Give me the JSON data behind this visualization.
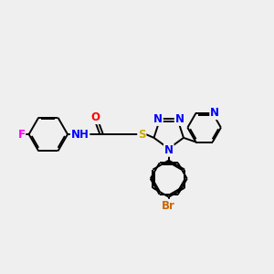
{
  "bg_color": "#efefef",
  "bond_color": "#000000",
  "bond_width": 1.4,
  "font_size": 8.5,
  "colors": {
    "N": "#0000ff",
    "O": "#ff0000",
    "S": "#ccaa00",
    "F": "#ff00ff",
    "Br": "#cc6600",
    "C": "#000000"
  },
  "xlim": [
    0,
    10
  ],
  "ylim": [
    1.5,
    8.5
  ]
}
